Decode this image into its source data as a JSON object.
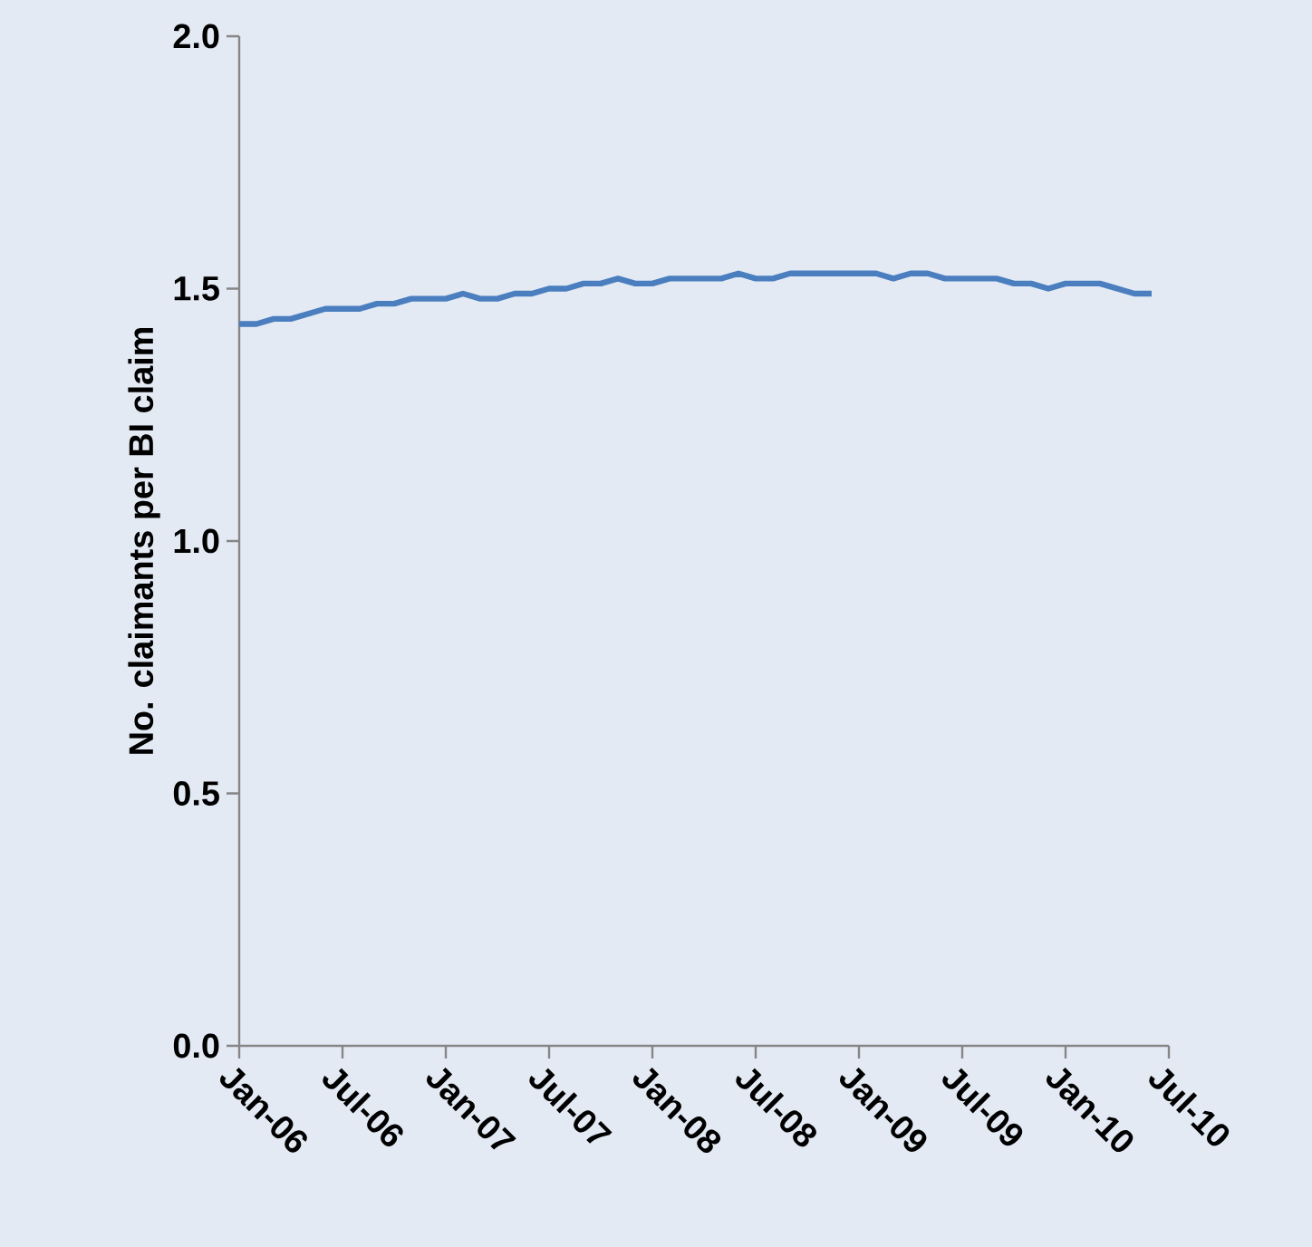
{
  "chart_data": {
    "type": "line",
    "ylabel": "No. claimants per BI claim",
    "x": [
      "2006-01",
      "2006-02",
      "2006-03",
      "2006-04",
      "2006-05",
      "2006-06",
      "2006-07",
      "2006-08",
      "2006-09",
      "2006-10",
      "2006-11",
      "2006-12",
      "2007-01",
      "2007-02",
      "2007-03",
      "2007-04",
      "2007-05",
      "2007-06",
      "2007-07",
      "2007-08",
      "2007-09",
      "2007-10",
      "2007-11",
      "2007-12",
      "2008-01",
      "2008-02",
      "2008-03",
      "2008-04",
      "2008-05",
      "2008-06",
      "2008-07",
      "2008-08",
      "2008-09",
      "2008-10",
      "2008-11",
      "2008-12",
      "2009-01",
      "2009-02",
      "2009-03",
      "2009-04",
      "2009-05",
      "2009-06",
      "2009-07",
      "2009-08",
      "2009-09",
      "2009-10",
      "2009-11",
      "2009-12",
      "2010-01",
      "2010-02",
      "2010-03",
      "2010-04",
      "2010-05",
      "2010-06"
    ],
    "series": [
      {
        "color": "#4a7ebf",
        "values": [
          1.43,
          1.43,
          1.44,
          1.44,
          1.45,
          1.46,
          1.46,
          1.46,
          1.47,
          1.47,
          1.48,
          1.48,
          1.48,
          1.49,
          1.48,
          1.48,
          1.49,
          1.49,
          1.5,
          1.5,
          1.51,
          1.51,
          1.52,
          1.51,
          1.51,
          1.52,
          1.52,
          1.52,
          1.52,
          1.53,
          1.52,
          1.52,
          1.53,
          1.53,
          1.53,
          1.53,
          1.53,
          1.53,
          1.52,
          1.53,
          1.53,
          1.52,
          1.52,
          1.52,
          1.52,
          1.51,
          1.51,
          1.5,
          1.51,
          1.51,
          1.51,
          1.5,
          1.49,
          1.49
        ]
      }
    ],
    "xlim": [
      "2006-01",
      "2010-07"
    ],
    "xticks": [
      {
        "value": "2006-01",
        "label": "Jan-06"
      },
      {
        "value": "2006-07",
        "label": "Jul-06"
      },
      {
        "value": "2007-01",
        "label": "Jan-07"
      },
      {
        "value": "2007-07",
        "label": "Jul-07"
      },
      {
        "value": "2008-01",
        "label": "Jan-08"
      },
      {
        "value": "2008-07",
        "label": "Jul-08"
      },
      {
        "value": "2009-01",
        "label": "Jan-09"
      },
      {
        "value": "2009-07",
        "label": "Jul-09"
      },
      {
        "value": "2010-01",
        "label": "Jan-10"
      },
      {
        "value": "2010-07",
        "label": "Jul-10"
      }
    ],
    "ylim": [
      0,
      2
    ],
    "yticks": [
      {
        "value": 0,
        "label": "0.0"
      },
      {
        "value": 0.5,
        "label": "0.5"
      },
      {
        "value": 1,
        "label": "1.0"
      },
      {
        "value": 1.5,
        "label": "1.5"
      },
      {
        "value": 2,
        "label": "2.0"
      }
    ],
    "grid": false,
    "marker": "none",
    "line_style": "solid"
  }
}
